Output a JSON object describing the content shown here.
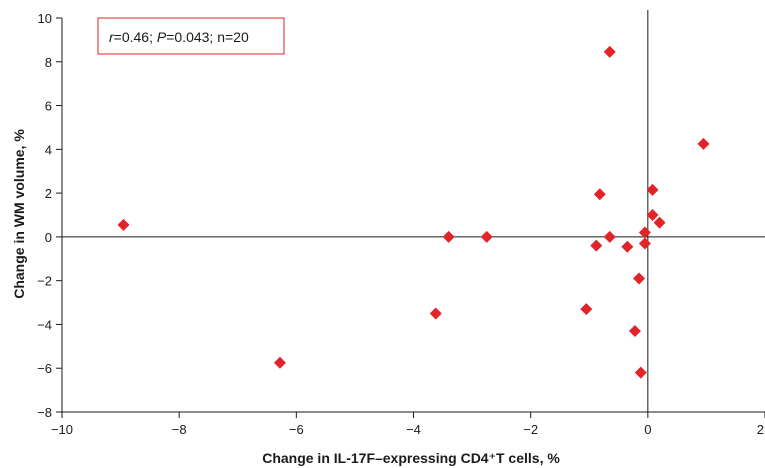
{
  "chart_data": {
    "type": "scatter",
    "xlabel": "Change in IL-17F–expressing CD4⁺T cells, %",
    "ylabel": "Change in WM volume, %",
    "xlim": [
      -10,
      2
    ],
    "ylim": [
      -8,
      10
    ],
    "xticks": [
      -10,
      -8,
      -6,
      -4,
      -2,
      0,
      2
    ],
    "yticks": [
      -8,
      -6,
      -4,
      -2,
      0,
      2,
      4,
      6,
      8,
      10
    ],
    "tick_labels_x": [
      "−10",
      "−8",
      "−6",
      "−4",
      "−2",
      "0",
      "2"
    ],
    "tick_labels_y": [
      "−8",
      "−6",
      "−4",
      "−2",
      "0",
      "2",
      "4",
      "6",
      "8",
      "10"
    ],
    "grid": false,
    "marker": "diamond",
    "marker_color": "#e2232a",
    "annotation": {
      "r_label": "r",
      "r_value": "=0.46; ",
      "p_label": "P",
      "p_value": "=0.043; n=20",
      "border_color": "#e2232a"
    },
    "points": [
      {
        "x": -8.95,
        "y": 0.55
      },
      {
        "x": -6.28,
        "y": -5.75
      },
      {
        "x": -3.62,
        "y": -3.5
      },
      {
        "x": -3.4,
        "y": 0.0
      },
      {
        "x": -2.75,
        "y": 0.0
      },
      {
        "x": -1.05,
        "y": -3.3
      },
      {
        "x": -0.88,
        "y": -0.4
      },
      {
        "x": -0.82,
        "y": 1.95
      },
      {
        "x": -0.65,
        "y": 8.45
      },
      {
        "x": -0.65,
        "y": 0.0
      },
      {
        "x": -0.35,
        "y": -0.45
      },
      {
        "x": -0.22,
        "y": -4.3
      },
      {
        "x": -0.15,
        "y": -1.9
      },
      {
        "x": -0.12,
        "y": -6.2
      },
      {
        "x": -0.05,
        "y": 0.2
      },
      {
        "x": -0.05,
        "y": -0.3
      },
      {
        "x": 0.08,
        "y": 2.15
      },
      {
        "x": 0.08,
        "y": 1.0
      },
      {
        "x": 0.2,
        "y": 0.65
      },
      {
        "x": 0.95,
        "y": 4.25
      }
    ]
  }
}
